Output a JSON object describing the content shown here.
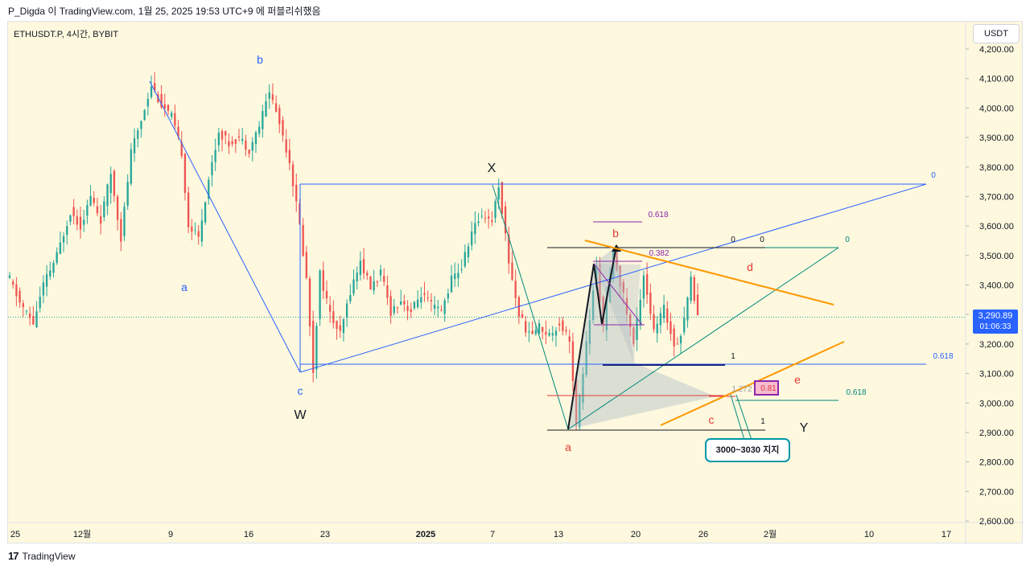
{
  "caption": "P_Digda 이 TradingView.com, 1월 25, 2025 19:53 UTC+9 에 퍼블리쉬했음",
  "symbol": "ETHUSDT.P, 4시간, BYBIT",
  "currency": "USDT",
  "footer": {
    "logo_icon": "tradingview-logo-icon",
    "brand": "TradingView"
  },
  "last_price": {
    "price": "3,290.89",
    "timer": "01:06:33"
  },
  "callout": "3000~3030 지지",
  "colors": {
    "background": "#fdf8de",
    "candle_up": "#26a69a",
    "candle_down": "#ef5350",
    "wave_lines": "#2962ff",
    "channel": "#ff9800",
    "harmonic": "#8e24aa",
    "teal": "#00897b",
    "label_red": "#e53935"
  },
  "chart_data": {
    "type": "candlestick",
    "title": "",
    "xlabel": "",
    "ylabel": "",
    "ylim": [
      2600,
      4200
    ],
    "x_ticks": [
      "25",
      "12월",
      "9",
      "16",
      "23",
      "2025",
      "7",
      "13",
      "20",
      "26",
      "2월",
      "10",
      "17"
    ],
    "y_ticks": [
      "4,200.00",
      "4,100.00",
      "4,000.00",
      "3,900.00",
      "3,800.00",
      "3,700.00",
      "3,600.00",
      "3,500.00",
      "3,400.00",
      "3,300.00",
      "3,200.00",
      "3,100.00",
      "3,000.00",
      "2,900.00",
      "2,800.00",
      "2,700.00",
      "2,600.00"
    ],
    "price_anchors": [
      [
        0,
        3420
      ],
      [
        3,
        3340
      ],
      [
        7,
        3270
      ],
      [
        10,
        3400
      ],
      [
        14,
        3500
      ],
      [
        18,
        3650
      ],
      [
        21,
        3600
      ],
      [
        24,
        3700
      ],
      [
        27,
        3620
      ],
      [
        30,
        3780
      ],
      [
        33,
        3560
      ],
      [
        36,
        3850
      ],
      [
        39,
        3960
      ],
      [
        42,
        4080
      ],
      [
        45,
        4010
      ],
      [
        48,
        3970
      ],
      [
        51,
        3850
      ],
      [
        53,
        3600
      ],
      [
        56,
        3560
      ],
      [
        59,
        3760
      ],
      [
        62,
        3920
      ],
      [
        65,
        3880
      ],
      [
        68,
        3900
      ],
      [
        71,
        3860
      ],
      [
        74,
        3940
      ],
      [
        77,
        4060
      ],
      [
        80,
        3950
      ],
      [
        83,
        3820
      ],
      [
        86,
        3600
      ],
      [
        88,
        3420
      ],
      [
        90,
        3110
      ],
      [
        92,
        3440
      ],
      [
        95,
        3300
      ],
      [
        98,
        3230
      ],
      [
        101,
        3380
      ],
      [
        104,
        3480
      ],
      [
        107,
        3390
      ],
      [
        110,
        3440
      ],
      [
        113,
        3310
      ],
      [
        116,
        3350
      ],
      [
        119,
        3310
      ],
      [
        122,
        3370
      ],
      [
        125,
        3330
      ],
      [
        128,
        3310
      ],
      [
        131,
        3420
      ],
      [
        134,
        3460
      ],
      [
        137,
        3580
      ],
      [
        140,
        3640
      ],
      [
        143,
        3620
      ],
      [
        145,
        3740
      ],
      [
        148,
        3480
      ],
      [
        151,
        3300
      ],
      [
        154,
        3230
      ],
      [
        157,
        3260
      ],
      [
        160,
        3230
      ],
      [
        163,
        3270
      ],
      [
        166,
        3220
      ],
      [
        168,
        2920
      ],
      [
        171,
        3200
      ],
      [
        174,
        3460
      ],
      [
        176,
        3260
      ],
      [
        179,
        3510
      ],
      [
        182,
        3360
      ],
      [
        185,
        3200
      ],
      [
        188,
        3440
      ],
      [
        191,
        3240
      ],
      [
        194,
        3320
      ],
      [
        197,
        3200
      ],
      [
        199,
        3230
      ],
      [
        202,
        3420
      ],
      [
        204,
        3300
      ]
    ],
    "wave_labels": [
      {
        "text": "a",
        "color": "#2962ff"
      },
      {
        "text": "b",
        "color": "#2962ff"
      },
      {
        "text": "c",
        "color": "#2962ff"
      },
      {
        "text": "W",
        "color": "#131722"
      },
      {
        "text": "X",
        "color": "#131722"
      },
      {
        "text": "Y",
        "color": "#131722"
      },
      {
        "text": "a",
        "color": "#e53935"
      },
      {
        "text": "b",
        "color": "#e53935"
      },
      {
        "text": "c",
        "color": "#e53935"
      },
      {
        "text": "d",
        "color": "#e53935"
      },
      {
        "text": "e",
        "color": "#e53935"
      }
    ],
    "levels": [
      {
        "text": "0",
        "color": "#2962ff"
      },
      {
        "text": "0.618",
        "color": "#2962ff"
      },
      {
        "text": "0",
        "color": "#00897b"
      },
      {
        "text": "0.618",
        "color": "#00897b"
      },
      {
        "text": "0",
        "color": "#131722"
      },
      {
        "text": "0",
        "color": "#131722"
      },
      {
        "text": "1",
        "color": "#131722"
      },
      {
        "text": "1",
        "color": "#131722"
      },
      {
        "text": "0.618",
        "color": "#8e24aa"
      },
      {
        "text": "0.382",
        "color": "#8e24aa"
      },
      {
        "text": "1.272",
        "color": "#9e9e9e"
      },
      {
        "text": "0.81",
        "color": "#e53935"
      }
    ]
  }
}
